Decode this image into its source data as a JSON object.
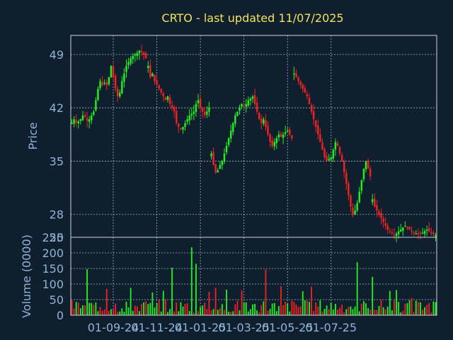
{
  "colors": {
    "background": "#0f1f2e",
    "axis": "#c8d4e3",
    "grid": "#c8d4e3",
    "text": "#8fb3d9",
    "title": "#f2e35a",
    "up": "#22ee22",
    "down": "#ee2222"
  },
  "chart_data": {
    "type": "candlestick",
    "title": "CRTO - last updated 11/07/2025",
    "price_panel": {
      "ylabel": "Price",
      "yticks": [
        25,
        28,
        35,
        42,
        49
      ],
      "ylim": [
        25,
        51.5
      ],
      "grid": true
    },
    "volume_panel": {
      "ylabel": "Volume (0000)",
      "yticks": [
        0,
        50,
        100,
        150,
        200,
        250
      ],
      "ylim": [
        0,
        250
      ],
      "grid": true
    },
    "x_tick_labels": [
      "01-09-24",
      "01-11-24",
      "01-01-25",
      "01-03-25",
      "01-05-25",
      "01-07-25"
    ],
    "x_tick_index": [
      19,
      39,
      59,
      79,
      99,
      119
    ],
    "series": [
      {
        "segment_start": 0,
        "points": [
          40,
          40.5,
          40,
          40.2,
          40.5,
          41,
          40.8,
          40.3,
          40.5,
          41,
          41.5,
          43,
          44.5,
          45.5,
          45,
          45.3,
          45,
          46,
          47.5,
          46,
          44.5,
          43.5,
          44,
          45.5,
          46.5,
          47.5,
          48,
          48.5,
          48.8,
          49,
          49.2,
          49.5,
          49.3,
          49,
          48.5
        ]
      },
      {
        "segment_start": 35,
        "points": [
          47.5,
          46,
          46.5,
          45.5,
          45,
          44.5,
          44,
          43.5,
          43,
          43.5,
          42.5,
          42,
          41.5,
          40,
          39.5,
          39.2,
          39.5,
          40,
          40.5,
          41,
          41.2,
          41.5,
          42.5,
          43,
          42,
          41.5,
          41,
          41.5,
          42
        ]
      },
      {
        "segment_start": 64,
        "points": [
          36,
          34.5,
          33.5,
          33.8,
          34.5,
          35,
          36,
          37,
          38,
          39,
          40,
          41,
          41.5,
          42,
          42.5,
          42.3,
          42.5,
          43,
          43.2,
          43.5,
          42.5,
          41.5,
          40.5,
          40,
          40.5,
          39.5,
          38.5,
          37.5,
          37,
          37.5,
          38,
          38.5,
          38.2,
          38.5,
          38.8,
          39,
          38.5,
          38
        ]
      },
      {
        "segment_start": 102,
        "points": [
          46.5,
          46,
          45.5,
          45,
          44.5,
          44,
          43.5,
          42.5,
          41.5,
          40.5,
          39.5,
          38.5,
          37.5,
          36.5,
          35.5,
          35,
          35.3,
          35.5,
          36.5,
          37.5,
          37,
          36,
          35,
          33.5,
          32,
          30.5,
          29,
          28,
          28.5,
          29.5,
          31,
          32.5,
          34,
          35,
          34,
          33
        ]
      },
      {
        "segment_start": 138,
        "points": [
          30,
          29,
          28.5,
          28,
          27.5,
          27,
          26.5,
          26,
          25.8,
          25.5,
          25.3,
          25.5,
          25.8,
          26,
          26.3,
          26.5,
          26.2,
          26,
          25.8,
          25.6,
          25.5,
          25.4,
          25.5,
          25.6,
          25.8,
          26,
          25.8,
          25.5,
          25.4,
          25.3
        ]
      }
    ]
  }
}
